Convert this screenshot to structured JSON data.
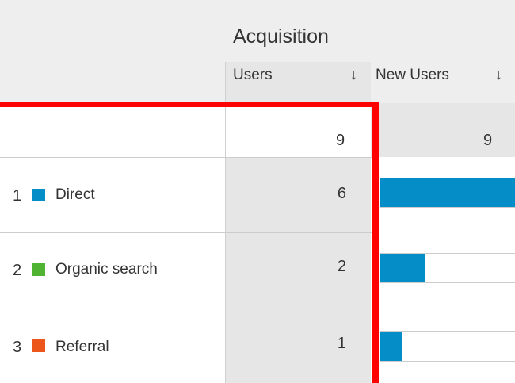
{
  "header": {
    "group_title": "Acquisition",
    "columns": [
      {
        "label": "Users",
        "sort_icon": "arrow-down-icon",
        "sort_glyph": "↓"
      },
      {
        "label": "New Users",
        "sort_icon": "arrow-down-icon",
        "sort_glyph": "↓"
      }
    ]
  },
  "totals": {
    "users": "9",
    "new_users": "9"
  },
  "rows": [
    {
      "rank": "1",
      "channel": "Direct",
      "color": "#058dc7",
      "users": "6",
      "bar_fraction": 1.0
    },
    {
      "rank": "2",
      "channel": "Organic search",
      "color": "#50b432",
      "users": "2",
      "bar_fraction": 0.333
    },
    {
      "rank": "3",
      "channel": "Referral",
      "color": "#ed561b",
      "users": "1",
      "bar_fraction": 0.167
    }
  ],
  "colors": {
    "bar": "#058dc7",
    "highlight": "#ff0000"
  }
}
